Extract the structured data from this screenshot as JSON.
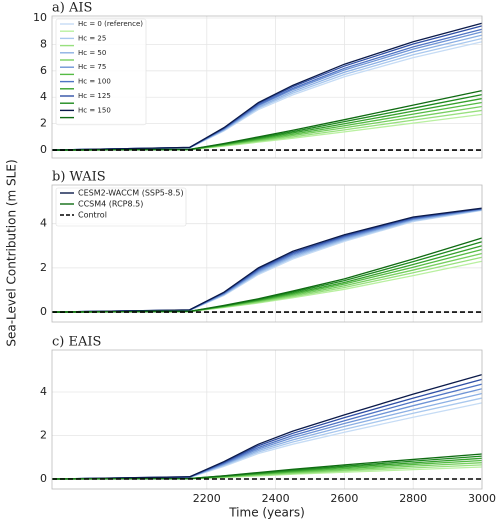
{
  "chart_data": [
    {
      "type": "line",
      "title": "a) AIS",
      "legend": "upper left",
      "x": [
        1750,
        2150,
        2250,
        2350,
        2450,
        2600,
        2800,
        3000
      ],
      "xlim": [
        1750,
        3000
      ],
      "xticks": [
        2200,
        2400,
        2600,
        2800,
        3000
      ],
      "ylim": [
        -0.6,
        10.15
      ],
      "yticks": [
        0,
        2,
        4,
        6,
        8,
        10
      ],
      "grid": true,
      "series": [
        {
          "name": "Hc = 0 (reference)",
          "color": "#c6dcf5",
          "values": [
            0,
            0.17,
            1.45,
            3.07,
            4.18,
            5.55,
            7.0,
            8.2
          ]
        },
        {
          "name": null,
          "color": "#b9f0a0",
          "values": [
            0,
            0.03,
            0.3,
            0.6,
            0.9,
            1.38,
            2.04,
            2.7
          ]
        },
        {
          "name": "Hc = 25",
          "color": "#a9c8ee",
          "values": [
            0,
            0.18,
            1.5,
            3.17,
            4.31,
            5.72,
            7.22,
            8.45
          ]
        },
        {
          "name": null,
          "color": "#98e07e",
          "values": [
            0,
            0.03,
            0.33,
            0.67,
            1.0,
            1.53,
            2.27,
            3.0
          ]
        },
        {
          "name": "Hc = 50",
          "color": "#8cb0e4",
          "values": [
            0,
            0.18,
            1.54,
            3.26,
            4.44,
            5.89,
            7.43,
            8.7
          ]
        },
        {
          "name": null,
          "color": "#77cf60",
          "values": [
            0,
            0.04,
            0.37,
            0.73,
            1.1,
            1.69,
            2.49,
            3.3
          ]
        },
        {
          "name": "Hc = 75",
          "color": "#6e94d6",
          "values": [
            0,
            0.19,
            1.58,
            3.36,
            4.57,
            6.06,
            7.64,
            8.95
          ]
        },
        {
          "name": null,
          "color": "#55bb44",
          "values": [
            0,
            0.04,
            0.4,
            0.8,
            1.2,
            1.84,
            2.72,
            3.6
          ]
        },
        {
          "name": "Hc = 100",
          "color": "#4f74c4",
          "values": [
            0,
            0.19,
            1.62,
            3.43,
            4.67,
            6.19,
            7.81,
            9.15
          ]
        },
        {
          "name": null,
          "color": "#36a02c",
          "values": [
            0,
            0.04,
            0.43,
            0.87,
            1.3,
            1.99,
            2.95,
            3.9
          ]
        },
        {
          "name": "Hc = 125",
          "color": "#2f4fa5",
          "values": [
            0,
            0.2,
            1.66,
            3.52,
            4.8,
            6.36,
            8.03,
            9.4
          ]
        },
        {
          "name": null,
          "color": "#1e8a1e",
          "values": [
            0,
            0.05,
            0.47,
            0.93,
            1.4,
            2.15,
            3.17,
            4.2
          ]
        },
        {
          "name": "Hc = 150",
          "color": "#0b1a4a",
          "values": [
            0,
            0.2,
            1.7,
            3.6,
            4.9,
            6.5,
            8.2,
            9.6
          ]
        },
        {
          "name": null,
          "color": "#0f6b12",
          "values": [
            0,
            0.05,
            0.5,
            1.0,
            1.5,
            2.3,
            3.4,
            4.5
          ]
        },
        {
          "color": "#000000",
          "linestyle": "dashed",
          "values": [
            0,
            0,
            0,
            0,
            0,
            0,
            0,
            0
          ]
        }
      ]
    },
    {
      "type": "line",
      "title": "b) WAIS",
      "legend": "upper left",
      "ylabel": "Sea-Level Contribution (m SLE)",
      "x": [
        1750,
        2150,
        2250,
        2350,
        2450,
        2600,
        2800,
        3000
      ],
      "xlim": [
        1750,
        3000
      ],
      "xticks": [
        2200,
        2400,
        2600,
        2800,
        3000
      ],
      "ylim": [
        -0.45,
        5.75
      ],
      "yticks": [
        0,
        2,
        4
      ],
      "grid": true,
      "series": [
        {
          "color": "#c6dcf5",
          "values": [
            0,
            0.08,
            0.75,
            1.7,
            2.4,
            3.2,
            4.1,
            4.6
          ]
        },
        {
          "color": "#a9c8ee",
          "values": [
            0,
            0.08,
            0.78,
            1.75,
            2.46,
            3.25,
            4.13,
            4.62
          ]
        },
        {
          "color": "#8cb0e4",
          "values": [
            0,
            0.09,
            0.8,
            1.8,
            2.52,
            3.3,
            4.17,
            4.63
          ]
        },
        {
          "color": "#6e94d6",
          "values": [
            0,
            0.09,
            0.83,
            1.85,
            2.58,
            3.35,
            4.2,
            4.65
          ]
        },
        {
          "color": "#4f74c4",
          "values": [
            0,
            0.09,
            0.85,
            1.9,
            2.63,
            3.4,
            4.23,
            4.67
          ]
        },
        {
          "color": "#2f4fa5",
          "values": [
            0,
            0.1,
            0.88,
            1.95,
            2.69,
            3.45,
            4.27,
            4.68
          ]
        },
        {
          "name": "CESM2-WACCM (SSP5-8.5)",
          "color": "#0b1a4a",
          "values": [
            0,
            0.1,
            0.9,
            2.0,
            2.75,
            3.5,
            4.3,
            4.7
          ]
        },
        {
          "color": "#b9f0a0",
          "values": [
            0,
            0.02,
            0.21,
            0.41,
            0.65,
            1.03,
            1.65,
            2.3
          ]
        },
        {
          "color": "#98e07e",
          "values": [
            0,
            0.02,
            0.22,
            0.44,
            0.7,
            1.11,
            1.78,
            2.48
          ]
        },
        {
          "color": "#77cf60",
          "values": [
            0,
            0.02,
            0.24,
            0.48,
            0.75,
            1.19,
            1.9,
            2.65
          ]
        },
        {
          "color": "#55bb44",
          "values": [
            0,
            0.03,
            0.25,
            0.51,
            0.8,
            1.27,
            2.03,
            2.83
          ]
        },
        {
          "color": "#36a02c",
          "values": [
            0,
            0.03,
            0.27,
            0.54,
            0.85,
            1.34,
            2.15,
            3.0
          ]
        },
        {
          "color": "#1e8a1e",
          "values": [
            0,
            0.03,
            0.28,
            0.57,
            0.9,
            1.42,
            2.28,
            3.18
          ]
        },
        {
          "name": "CCSM4 (RCP8.5)",
          "color": "#0f6b12",
          "values": [
            0,
            0.03,
            0.3,
            0.6,
            0.95,
            1.5,
            2.4,
            3.35
          ]
        },
        {
          "name": "Control",
          "color": "#000000",
          "linestyle": "dashed",
          "values": [
            0,
            0,
            0,
            0,
            0,
            0,
            0,
            0
          ]
        }
      ]
    },
    {
      "type": "line",
      "title": "c) EAIS",
      "xlabel": "Time (years)",
      "x": [
        1750,
        2150,
        2250,
        2350,
        2450,
        2600,
        2800,
        3000
      ],
      "xlim": [
        1750,
        3000
      ],
      "xticks": [
        2200,
        2400,
        2600,
        2800,
        3000
      ],
      "ylim": [
        -0.46,
        5.93
      ],
      "yticks": [
        0,
        2,
        4
      ],
      "grid": true,
      "series": [
        {
          "color": "#c6dcf5",
          "values": [
            0,
            0.07,
            0.58,
            1.17,
            1.6,
            2.15,
            2.84,
            3.5
          ]
        },
        {
          "color": "#a9c8ee",
          "values": [
            0,
            0.08,
            0.62,
            1.24,
            1.7,
            2.28,
            3.02,
            3.72
          ]
        },
        {
          "color": "#8cb0e4",
          "values": [
            0,
            0.08,
            0.66,
            1.31,
            1.8,
            2.42,
            3.19,
            3.93
          ]
        },
        {
          "color": "#6e94d6",
          "values": [
            0,
            0.09,
            0.69,
            1.38,
            1.9,
            2.55,
            3.37,
            4.15
          ]
        },
        {
          "color": "#4f74c4",
          "values": [
            0,
            0.09,
            0.73,
            1.45,
            2.0,
            2.68,
            3.55,
            4.36
          ]
        },
        {
          "color": "#2f4fa5",
          "values": [
            0,
            0.1,
            0.76,
            1.53,
            2.1,
            2.82,
            3.72,
            4.58
          ]
        },
        {
          "color": "#0b1a4a",
          "values": [
            0,
            0.1,
            0.8,
            1.6,
            2.2,
            2.95,
            3.9,
            4.8
          ]
        },
        {
          "color": "#b9f0a0",
          "values": [
            0,
            0.01,
            0.07,
            0.14,
            0.22,
            0.31,
            0.43,
            0.55
          ]
        },
        {
          "color": "#98e07e",
          "values": [
            0,
            0.01,
            0.08,
            0.17,
            0.25,
            0.37,
            0.51,
            0.65
          ]
        },
        {
          "color": "#77cf60",
          "values": [
            0,
            0.01,
            0.1,
            0.2,
            0.29,
            0.42,
            0.59,
            0.75
          ]
        },
        {
          "color": "#55bb44",
          "values": [
            0,
            0.01,
            0.11,
            0.22,
            0.33,
            0.48,
            0.67,
            0.85
          ]
        },
        {
          "color": "#36a02c",
          "values": [
            0,
            0.02,
            0.12,
            0.25,
            0.37,
            0.54,
            0.74,
            0.95
          ]
        },
        {
          "color": "#1e8a1e",
          "values": [
            0,
            0.02,
            0.14,
            0.27,
            0.41,
            0.59,
            0.82,
            1.05
          ]
        },
        {
          "color": "#0f6b12",
          "values": [
            0,
            0.02,
            0.15,
            0.3,
            0.45,
            0.65,
            0.9,
            1.15
          ]
        },
        {
          "color": "#000000",
          "linestyle": "dashed",
          "values": [
            0,
            0,
            0,
            0,
            0,
            0,
            0,
            0
          ]
        }
      ]
    }
  ]
}
